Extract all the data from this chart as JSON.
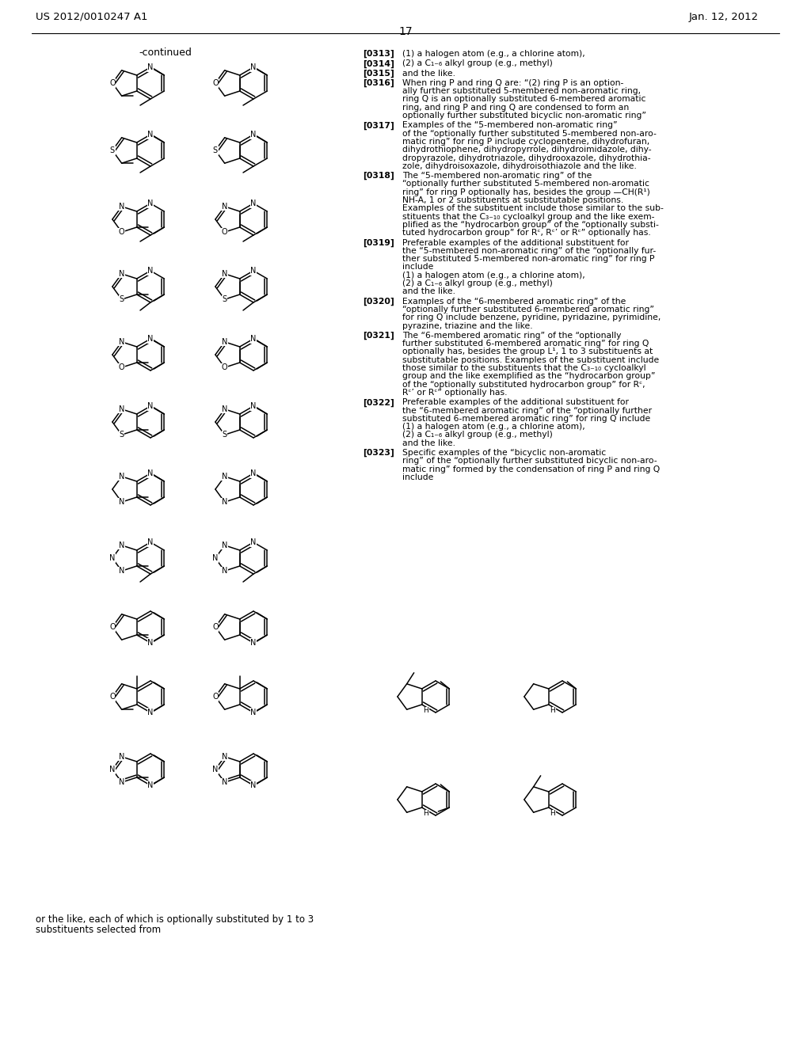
{
  "header_left": "US 2012/0010247 A1",
  "header_right": "Jan. 12, 2012",
  "page_number": "17",
  "continued": "-continued",
  "footer": "or the like, each of which is optionally substituted by 1 to 3\nsubstituents selected from",
  "paragraphs": [
    [
      "[0313]",
      "(1) a halogen atom (e.g., a chlorine atom),"
    ],
    [
      "[0314]",
      "(2) a C₁₋₆ alkyl group (e.g., methyl)"
    ],
    [
      "[0315]",
      "and the like."
    ],
    [
      "[0316]",
      "When ring P and ring Q are: “(2) ring P is an option-|ally further substituted 5-membered non-aromatic ring,|ring Q is an optionally substituted 6-membered aromatic|ring, and ring P and ring Q are condensed to form an|optionally further substituted bicyclic non-aromatic ring”"
    ],
    [
      "[0317]",
      "Examples of the “5-membered non-aromatic ring”|of the “optionally further substituted 5-membered non-aro-|matic ring” for ring P include cyclopentene, dihydrofuran,|dihydrothiophene, dihydropyrrole, dihydroimidazole, dihy-|dropyrazole, dihydrotriazole, dihydrooxazole, dihydrothia-|zole, dihydroisoxazole, dihydroisothiazole and the like."
    ],
    [
      "[0318]",
      "The “5-membered non-aromatic ring” of the|“optionally further substituted 5-membered non-aromatic|ring” for ring P optionally has, besides the group —CH(R¹)|NH-A, 1 or 2 substituents at substitutable positions.|Examples of the substituent include those similar to the sub-|stituents that the C₃₋₁₀ cycloalkyl group and the like exem-|plified as the “hydrocarbon group” of the “optionally substi-|tuted hydrocarbon group” for Rᶜ, Rᶜ’ or Rᶜ” optionally has."
    ],
    [
      "[0319]",
      "Preferable examples of the additional substituent for|the “5-membered non-aromatic ring” of the “optionally fur-|ther substituted 5-membered non-aromatic ring” for ring P|include|(1) a halogen atom (e.g., a chlorine atom),|(2) a C₁₋₆ alkyl group (e.g., methyl)|and the like."
    ],
    [
      "[0320]",
      "Examples of the “6-membered aromatic ring” of the|“optionally further substituted 6-membered aromatic ring”|for ring Q include benzene, pyridine, pyridazine, pyrimidine,|pyrazine, triazine and the like."
    ],
    [
      "[0321]",
      "The “6-membered aromatic ring” of the “optionally|further substituted 6-membered aromatic ring” for ring Q|optionally has, besides the group L¹, 1 to 3 substituents at|substitutable positions. Examples of the substituent include|those similar to the substituents that the C₃₋₁₀ cycloalkyl|group and the like exemplified as the “hydrocarbon group”|of the “optionally substituted hydrocarbon group” for Rᶜ,|Rᶜ’ or Rᶜ” optionally has."
    ],
    [
      "[0322]",
      "Preferable examples of the additional substituent for|the “6-membered aromatic ring” of the “optionally further|substituted 6-membered aromatic ring” for ring Q include|(1) a halogen atom (e.g., a chlorine atom),|(2) a C₁₋₆ alkyl group (e.g., methyl)|and the like."
    ],
    [
      "[0323]",
      "Specific examples of the “bicyclic non-aromatic|ring” of the “optionally further substituted bicyclic non-aro-|matic ring” formed by the condensation of ring P and ring Q|include"
    ]
  ],
  "bg_color": "#ffffff",
  "text_color": "#000000",
  "lw": 1.1
}
